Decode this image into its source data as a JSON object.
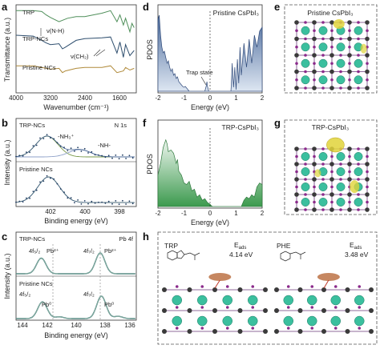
{
  "panels": {
    "a": {
      "label": "a",
      "legend": [
        "TRP",
        "TRP-NCs",
        "Pristine NCs"
      ],
      "annotations": [
        "ν(N-H)",
        "ν(CH₂)"
      ],
      "xticks": [
        "4000",
        "3200",
        "2400",
        "1600"
      ],
      "xlabel": "Wavenumber (cm⁻¹)",
      "ylabel": "Transmittance (a.u.)"
    },
    "b": {
      "label": "b",
      "title": "N 1s",
      "series_labels": [
        "TRP-NCs",
        "Pristine NCs"
      ],
      "peak_labels": [
        "-NH₃⁺",
        "-NH-"
      ],
      "xticks": [
        "402",
        "400",
        "398"
      ],
      "xlabel": "Binding energy (eV)",
      "ylabel": "Intensity (a.u.)"
    },
    "c": {
      "label": "c",
      "title": "Pb 4f",
      "series_labels": [
        "TRP-NCs",
        "Pristine NCs"
      ],
      "peak_labels": [
        "4f₅/₂",
        "Pb²⁺",
        "4f₇/₂",
        "Pb²⁺",
        "4f₅/₂",
        "Pb⁰",
        "4f₇/₂",
        "Pb⁰"
      ],
      "xticks": [
        "144",
        "142",
        "140",
        "138",
        "136"
      ],
      "xlabel": "Binding energy (eV)",
      "ylabel": "Intensity (a.u.)"
    },
    "d": {
      "label": "d",
      "title": "Pristine CsPbI₃",
      "annotation": "Trap state",
      "xticks": [
        "-2",
        "-1",
        "0",
        "1",
        "2"
      ],
      "xlabel": "Energy (eV)",
      "ylabel": "PDOS"
    },
    "e": {
      "label": "e",
      "title": "Pristine CsPbI₃"
    },
    "f": {
      "label": "f",
      "title": "TRP-CsPbI₃",
      "xticks": [
        "-2",
        "-1",
        "0",
        "1",
        "2"
      ],
      "xlabel": "Energy (eV)",
      "ylabel": "PDOS"
    },
    "g": {
      "label": "g",
      "title": "TRP-CsPbI₃"
    },
    "h": {
      "label": "h",
      "mol1": "TRP",
      "e1_label": "E",
      "e1_sub": "ads",
      "e1_value": "4.14 eV",
      "mol2": "PHE",
      "e2_label": "E",
      "e2_sub": "ads",
      "e2_value": "3.48 eV"
    }
  },
  "colors": {
    "trp": "#4f8f5a",
    "trp_ncs": "#2e4e6e",
    "pristine": "#b08a3a",
    "dos_blue": "#4b6a9b",
    "dos_green": "#3c9a4e",
    "cs": "#3bbf9e",
    "pb": "#3a3a3a",
    "iodine": "#8b2a8b",
    "density": "#e0d43a"
  },
  "chart_data": [
    {
      "type": "line",
      "panel": "a",
      "xlabel": "Wavenumber (cm⁻¹)",
      "ylabel": "Transmittance (a.u.)",
      "xlim": [
        4000,
        1200
      ],
      "series": [
        {
          "name": "TRP",
          "x": [
            4000,
            3600,
            3400,
            3300,
            3200,
            3000,
            2800,
            2600,
            2400,
            2000,
            1800,
            1650,
            1580,
            1500,
            1450,
            1350,
            1300,
            1250
          ],
          "y": [
            0.95,
            0.95,
            0.94,
            0.9,
            0.87,
            0.82,
            0.86,
            0.88,
            0.88,
            0.92,
            0.95,
            0.82,
            0.9,
            0.78,
            0.86,
            0.7,
            0.8,
            0.75
          ]
        },
        {
          "name": "TRP-NCs",
          "x": [
            4000,
            3600,
            3400,
            3300,
            3200,
            3000,
            2920,
            2850,
            2600,
            2400,
            2000,
            1800,
            1650,
            1580,
            1500,
            1450,
            1350,
            1250
          ],
          "y": [
            0.66,
            0.65,
            0.6,
            0.57,
            0.55,
            0.56,
            0.5,
            0.52,
            0.6,
            0.62,
            0.63,
            0.64,
            0.45,
            0.58,
            0.4,
            0.55,
            0.42,
            0.48
          ]
        },
        {
          "name": "Pristine NCs",
          "x": [
            4000,
            3600,
            3400,
            3200,
            3000,
            2920,
            2850,
            2600,
            2400,
            2000,
            1800,
            1650,
            1500,
            1450,
            1350,
            1250
          ],
          "y": [
            0.3,
            0.3,
            0.28,
            0.26,
            0.27,
            0.22,
            0.24,
            0.27,
            0.28,
            0.28,
            0.3,
            0.22,
            0.24,
            0.28,
            0.25,
            0.27
          ]
        }
      ]
    },
    {
      "type": "scatter",
      "panel": "b",
      "xlabel": "Binding energy (eV)",
      "ylabel": "Intensity (a.u.)",
      "xlim": [
        403.5,
        396.5
      ],
      "series": [
        {
          "name": "TRP-NCs",
          "peaks": [
            401.7,
            399.8
          ]
        },
        {
          "name": "Pristine NCs",
          "peaks": [
            401.6
          ]
        }
      ]
    },
    {
      "type": "line",
      "panel": "c",
      "xlabel": "Binding energy (eV)",
      "ylabel": "Intensity (a.u.)",
      "xlim": [
        145,
        135
      ],
      "series": [
        {
          "name": "TRP-NCs",
          "peaks": [
            142.9,
            138.0
          ]
        },
        {
          "name": "Pristine NCs",
          "peaks": [
            142.8,
            137.9
          ]
        }
      ]
    },
    {
      "type": "area",
      "panel": "d",
      "xlabel": "Energy (eV)",
      "ylabel": "PDOS",
      "xlim": [
        -2,
        2
      ],
      "x": [
        -2.0,
        -1.95,
        -1.9,
        -1.85,
        -1.8,
        -1.75,
        -1.7,
        -1.65,
        -1.6,
        -1.55,
        -1.5,
        -1.45,
        -1.4,
        -1.35,
        -1.3,
        -1.25,
        -1.2,
        -1.15,
        -1.1,
        -1.05,
        -1.0,
        -0.95,
        -0.9,
        -0.85,
        -0.8,
        -0.2,
        -0.15,
        -0.12,
        -0.1,
        -0.05,
        0.8,
        0.82,
        0.85,
        0.9,
        0.95,
        1.0,
        1.05,
        1.1,
        1.15,
        1.2,
        1.3,
        1.4,
        1.5,
        1.6,
        1.7,
        1.8,
        1.9,
        2.0
      ],
      "y": [
        0.9,
        0.95,
        0.7,
        0.55,
        0.48,
        0.5,
        0.42,
        0.35,
        0.38,
        0.3,
        0.25,
        0.28,
        0.2,
        0.22,
        0.16,
        0.18,
        0.12,
        0.1,
        0.08,
        0.06,
        0.05,
        0.06,
        0.04,
        0.02,
        0.0,
        0.0,
        0.06,
        0.12,
        0.06,
        0.0,
        0.0,
        0.1,
        0.35,
        0.05,
        0.3,
        0.02,
        0.4,
        0.1,
        0.55,
        0.2,
        0.6,
        0.3,
        0.65,
        0.35,
        0.7,
        0.55,
        0.75,
        0.8
      ]
    },
    {
      "type": "area",
      "panel": "f",
      "xlabel": "Energy (eV)",
      "ylabel": "PDOS",
      "xlim": [
        -2,
        2
      ],
      "x": [
        -2.0,
        -1.9,
        -1.8,
        -1.7,
        -1.65,
        -1.6,
        -1.5,
        -1.4,
        -1.3,
        -1.25,
        -1.2,
        -1.1,
        -1.0,
        -0.9,
        -0.8,
        -0.7,
        -0.6,
        -0.5,
        -0.4,
        -0.3,
        -0.2,
        -0.1,
        0.0,
        0.05,
        0.1,
        1.2,
        1.3,
        1.4,
        1.5,
        1.6,
        1.7,
        1.8,
        1.9,
        2.0
      ],
      "y": [
        0.4,
        0.55,
        0.75,
        0.85,
        0.8,
        0.7,
        0.72,
        0.68,
        0.55,
        0.6,
        0.45,
        0.4,
        0.3,
        0.28,
        0.32,
        0.2,
        0.22,
        0.12,
        0.15,
        0.08,
        0.1,
        0.05,
        0.03,
        0.01,
        0.0,
        0.0,
        0.08,
        0.12,
        0.1,
        0.15,
        0.12,
        0.25,
        0.3,
        0.28
      ]
    }
  ]
}
